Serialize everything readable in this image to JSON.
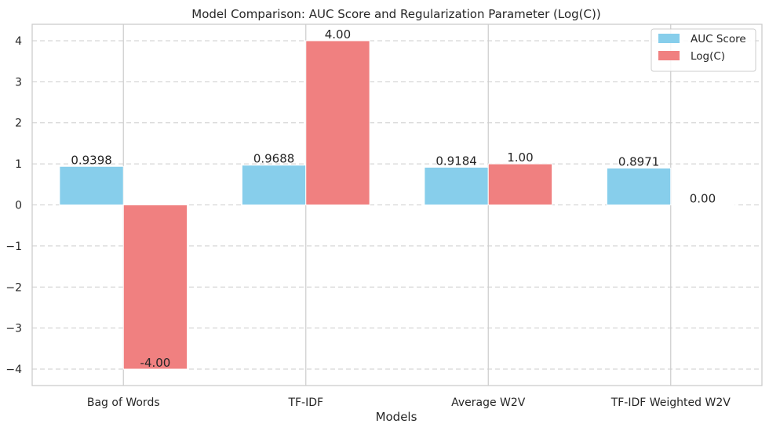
{
  "chart_data": {
    "type": "bar",
    "title": "Model Comparison: AUC Score and Regularization Parameter (Log(C))",
    "xlabel": "Models",
    "ylabel": "",
    "categories": [
      "Bag of Words",
      "TF-IDF",
      "Average W2V",
      "TF-IDF Weighted W2V"
    ],
    "series": [
      {
        "name": "AUC Score",
        "values": [
          0.9398,
          0.9688,
          0.9184,
          0.8971
        ],
        "labels": [
          "0.9398",
          "0.9688",
          "0.9184",
          "0.8971"
        ],
        "color": "#87ceeb"
      },
      {
        "name": "Log(C)",
        "values": [
          -4.0,
          4.0,
          1.0,
          0.0
        ],
        "labels": [
          "-4.00",
          "4.00",
          "1.00",
          "0.00"
        ],
        "color": "#f08080"
      }
    ],
    "ylim": [
      -4.4,
      4.4
    ],
    "yticks": [
      -4,
      -3,
      -2,
      -1,
      0,
      1,
      2,
      3,
      4
    ],
    "ytick_labels": [
      "−4",
      "−3",
      "−2",
      "−1",
      "0",
      "1",
      "2",
      "3",
      "4"
    ],
    "grid": {
      "y": "dashed",
      "x": "solid"
    },
    "legend_position": "top-right"
  }
}
